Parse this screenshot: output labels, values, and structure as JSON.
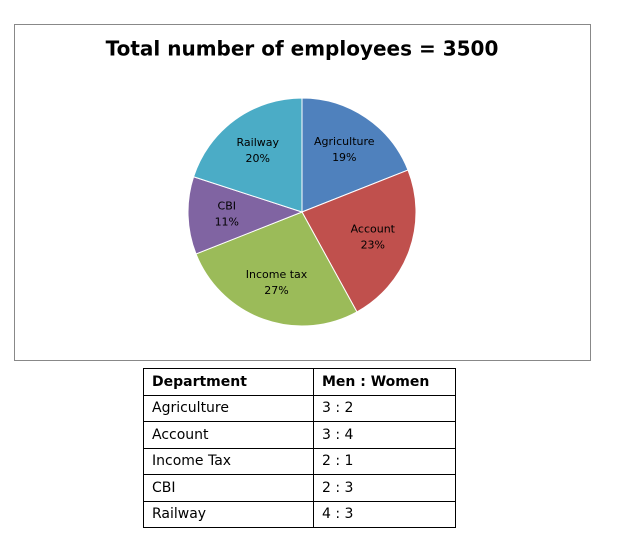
{
  "chart_data": {
    "type": "pie",
    "title": "Total number of employees = 3500",
    "categories": [
      "Agriculture",
      "Account",
      "Income tax",
      "CBI",
      "Railway"
    ],
    "values": [
      19,
      23,
      27,
      11,
      20
    ],
    "value_labels": [
      "19%",
      "23%",
      "27%",
      "11%",
      "20%"
    ],
    "colors": [
      "#4f81bd",
      "#c0504d",
      "#9bbb59",
      "#8064a2",
      "#4bacc6"
    ]
  },
  "table": {
    "header": [
      "Department",
      "Men : Women"
    ],
    "rows": [
      [
        "Agriculture",
        "3 : 2"
      ],
      [
        "Account",
        "3 : 4"
      ],
      [
        "Income Tax",
        "2 : 1"
      ],
      [
        "CBI",
        "2 : 3"
      ],
      [
        "Railway",
        "4 : 3"
      ]
    ]
  }
}
